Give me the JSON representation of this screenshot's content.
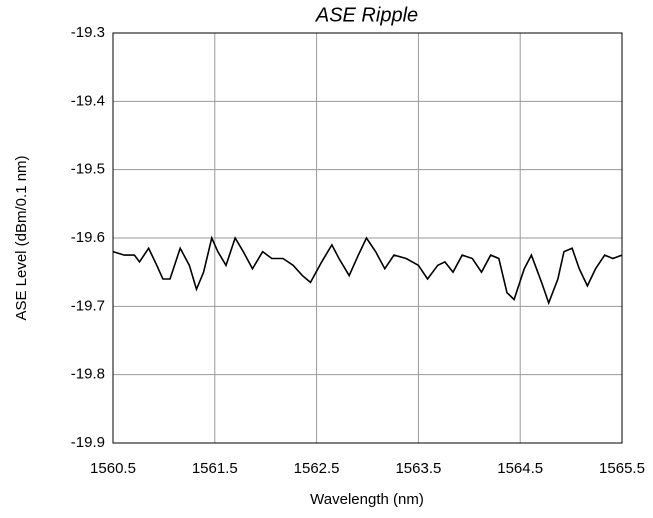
{
  "chart_data": {
    "type": "line",
    "title": "ASE Ripple",
    "x_label": "Wavelength (nm)",
    "y_label": "ASE Level (dBm/0.1 nm)",
    "grid": true,
    "color": "#000000",
    "xlim": [
      1560.5,
      1565.5
    ],
    "xticks": [
      1560.5,
      1561.5,
      1562.5,
      1563.5,
      1564.5,
      1565.5
    ],
    "ylim": [
      -19.9,
      -19.3
    ],
    "yticks": [
      -19.3,
      -19.4,
      -19.5,
      -19.6,
      -19.7,
      -19.8,
      -19.9
    ],
    "x": [
      1560.5,
      1560.61,
      1560.71,
      1560.76,
      1560.85,
      1560.93,
      1560.99,
      1561.06,
      1561.16,
      1561.25,
      1561.32,
      1561.39,
      1561.47,
      1561.53,
      1561.61,
      1561.7,
      1561.78,
      1561.87,
      1561.97,
      1562.06,
      1562.17,
      1562.27,
      1562.36,
      1562.44,
      1562.55,
      1562.65,
      1562.72,
      1562.82,
      1562.91,
      1562.99,
      1563.08,
      1563.17,
      1563.26,
      1563.38,
      1563.5,
      1563.59,
      1563.69,
      1563.76,
      1563.84,
      1563.93,
      1564.03,
      1564.12,
      1564.21,
      1564.29,
      1564.37,
      1564.44,
      1564.54,
      1564.61,
      1564.71,
      1564.78,
      1564.87,
      1564.93,
      1565.01,
      1565.08,
      1565.16,
      1565.24,
      1565.33,
      1565.41,
      1565.5
    ],
    "values": [
      -19.62,
      -19.625,
      -19.625,
      -19.635,
      -19.615,
      -19.64,
      -19.66,
      -19.66,
      -19.615,
      -19.64,
      -19.675,
      -19.65,
      -19.6,
      -19.62,
      -19.64,
      -19.6,
      -19.62,
      -19.645,
      -19.62,
      -19.63,
      -19.63,
      -19.64,
      -19.655,
      -19.665,
      -19.635,
      -19.61,
      -19.63,
      -19.655,
      -19.625,
      -19.6,
      -19.62,
      -19.645,
      -19.625,
      -19.63,
      -19.64,
      -19.66,
      -19.64,
      -19.635,
      -19.65,
      -19.625,
      -19.63,
      -19.65,
      -19.625,
      -19.63,
      -19.68,
      -19.69,
      -19.645,
      -19.625,
      -19.665,
      -19.695,
      -19.66,
      -19.62,
      -19.615,
      -19.645,
      -19.67,
      -19.645,
      -19.625,
      -19.63,
      -19.625
    ]
  }
}
